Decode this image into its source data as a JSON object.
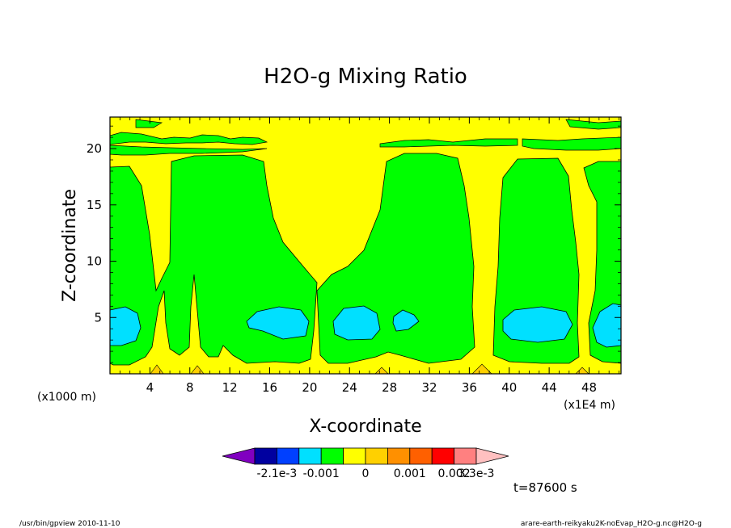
{
  "chart_data": {
    "type": "heatmap",
    "title": "H2O-g Mixing Ratio",
    "xlabel": "X-coordinate",
    "ylabel": "Z-coordinate",
    "x_scale_label": "(x1E4 m)",
    "y_scale_label": "(x1000 m)",
    "x_ticks": [
      "4",
      "8",
      "12",
      "16",
      "20",
      "24",
      "28",
      "32",
      "36",
      "40",
      "44",
      "48"
    ],
    "y_ticks": [
      "5",
      "10",
      "15",
      "20"
    ],
    "xlim": [
      0,
      51.2
    ],
    "ylim": [
      0,
      22.8
    ],
    "time_label": "t=87600 s",
    "colorbar": {
      "labels": [
        "-2.1e-3",
        "-0.001",
        "0",
        "0.001",
        "0.002",
        "3.3e-3"
      ],
      "colors": [
        "#8000c0",
        "#0000a0",
        "#0040ff",
        "#00e0ff",
        "#00ff00",
        "#ffff00",
        "#ffd000",
        "#ff9000",
        "#ff6000",
        "#ff0000",
        "#ff8080",
        "#ffc0c0"
      ]
    },
    "levels": {
      "positive_small": "#ffff00",
      "near_zero": "#00ff00",
      "negative_small": "#00e0ff",
      "positive_high": "#ffd000"
    }
  },
  "footer": {
    "left": "/usr/bin/gpview   2010-11-10",
    "right": "arare-earth-reikyaku2K-noEvap_H2O-g.nc@H2O-g"
  }
}
